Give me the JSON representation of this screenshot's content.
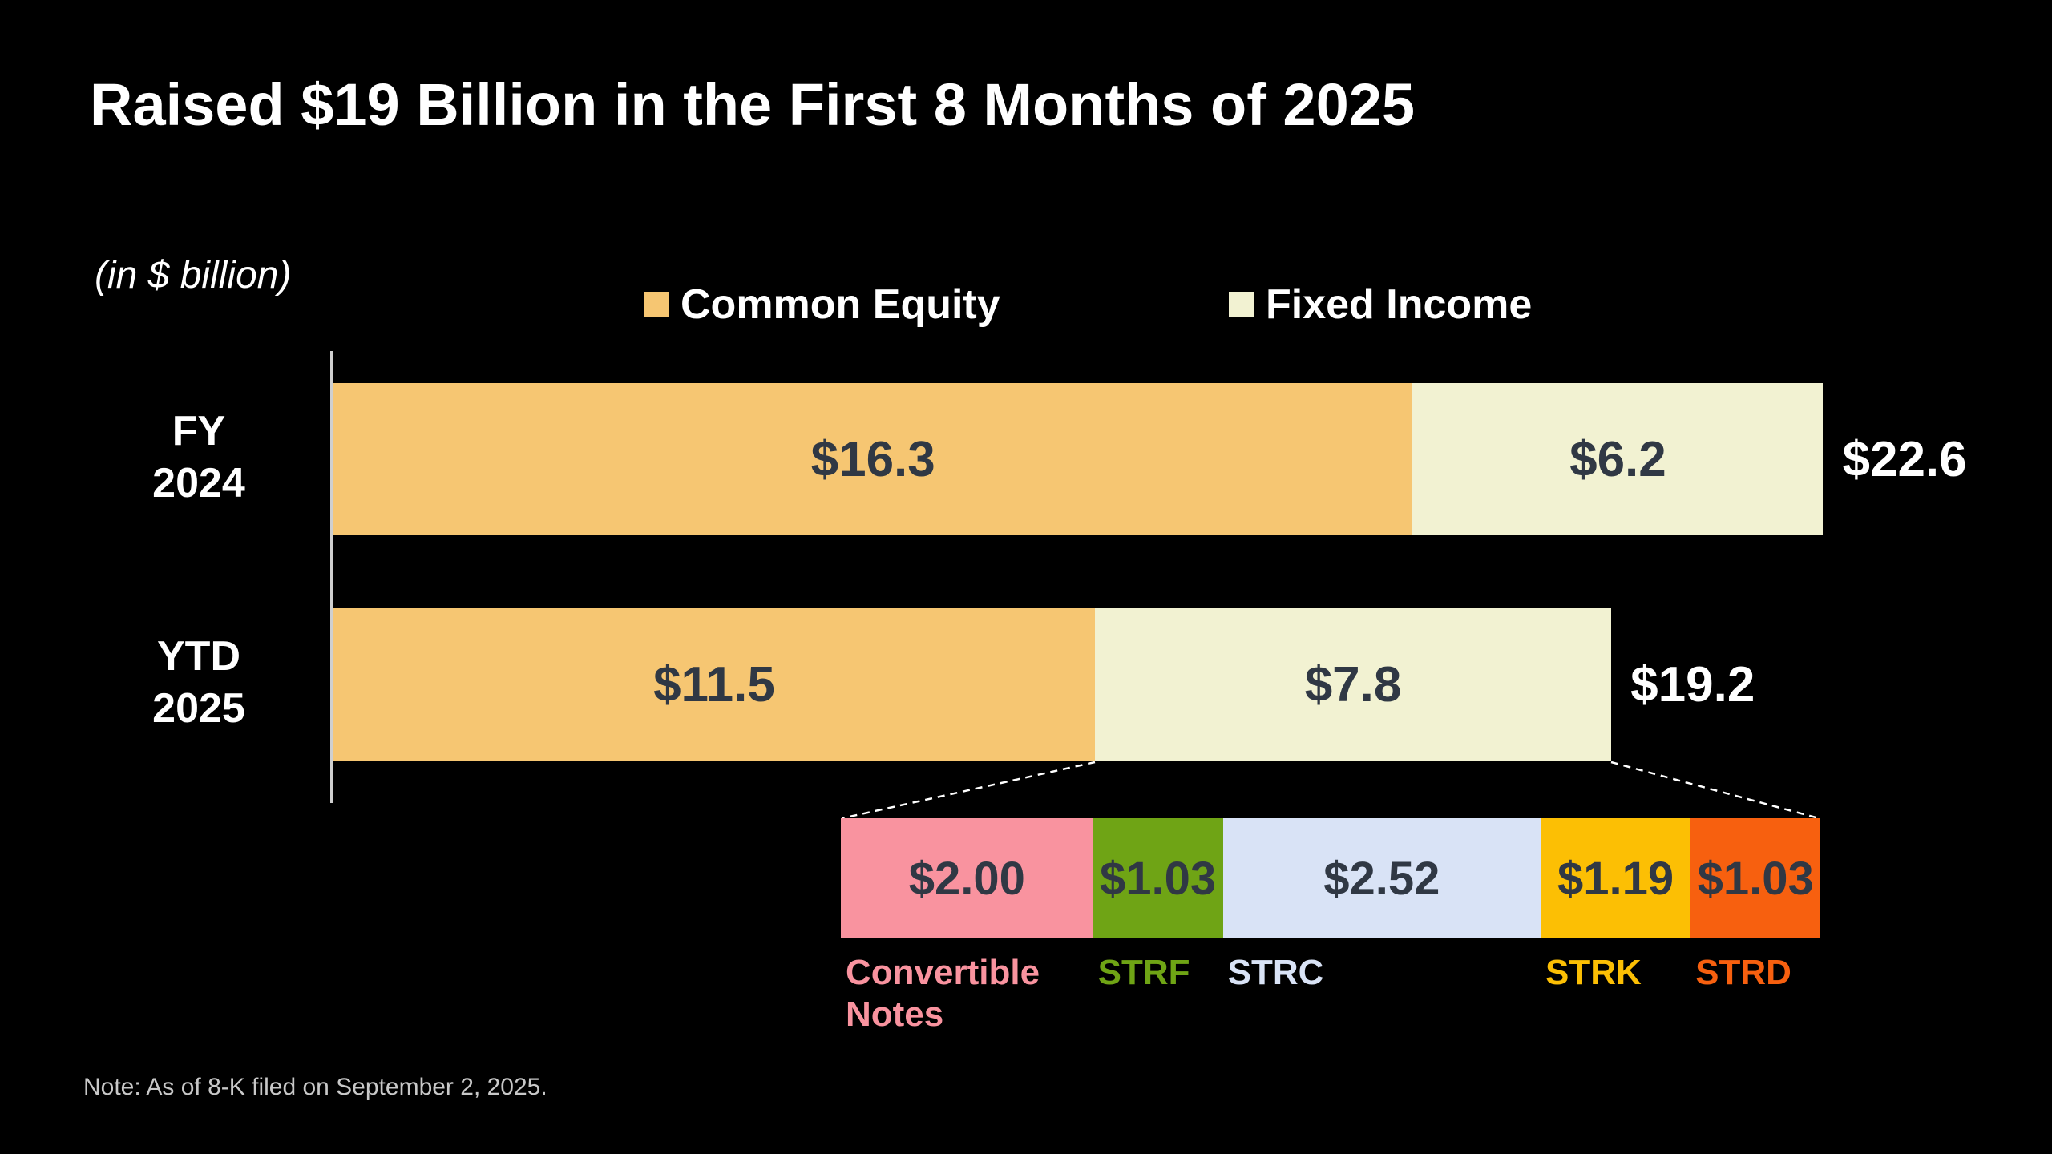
{
  "title": "Raised $19 Billion in the First 8 Months of 2025",
  "unit_label": "(in $ billion)",
  "note": "Note: As of 8-K filed on September 2, 2025.",
  "legend": [
    {
      "label": "Common Equity",
      "color": "#F6C672"
    },
    {
      "label": "Fixed Income",
      "color": "#F2F2D2"
    }
  ],
  "chart_data": {
    "type": "bar",
    "orientation": "horizontal-stacked",
    "unit": "$ billion",
    "grid": false,
    "legend_position": "top",
    "categories": [
      "FY 2024",
      "YTD 2025"
    ],
    "series": [
      {
        "name": "Common Equity",
        "color": "#F6C672",
        "values": [
          16.3,
          11.5
        ]
      },
      {
        "name": "Fixed Income",
        "color": "#F2F2D2",
        "values": [
          6.2,
          7.8
        ]
      }
    ],
    "totals": [
      22.6,
      19.2
    ],
    "rows": [
      {
        "label_top": "FY",
        "label_bottom": "2024",
        "segments": [
          {
            "name": "Common Equity",
            "value": 16.3,
            "display": "$16.3"
          },
          {
            "name": "Fixed Income",
            "value": 6.2,
            "display": "$6.2"
          }
        ],
        "total": 22.6,
        "total_display": "$22.6"
      },
      {
        "label_top": "YTD",
        "label_bottom": "2025",
        "segments": [
          {
            "name": "Common Equity",
            "value": 11.5,
            "display": "$11.5"
          },
          {
            "name": "Fixed Income",
            "value": 7.8,
            "display": "$7.8"
          }
        ],
        "total": 19.2,
        "total_display": "$19.2"
      }
    ],
    "breakdown": {
      "segments": [
        {
          "label": "Convertible Notes",
          "value": 2.0,
          "display": "$2.00",
          "color": "#F9939F"
        },
        {
          "label": "STRF",
          "value": 1.03,
          "display": "$1.03",
          "color": "#6FA415"
        },
        {
          "label": "STRC",
          "value": 2.52,
          "display": "$2.52",
          "color": "#D9E3F6"
        },
        {
          "label": "STRK",
          "value": 1.19,
          "display": "$1.19",
          "color": "#FCBF04"
        },
        {
          "label": "STRD",
          "value": 1.03,
          "display": "$1.03",
          "color": "#F7600F"
        }
      ]
    }
  }
}
